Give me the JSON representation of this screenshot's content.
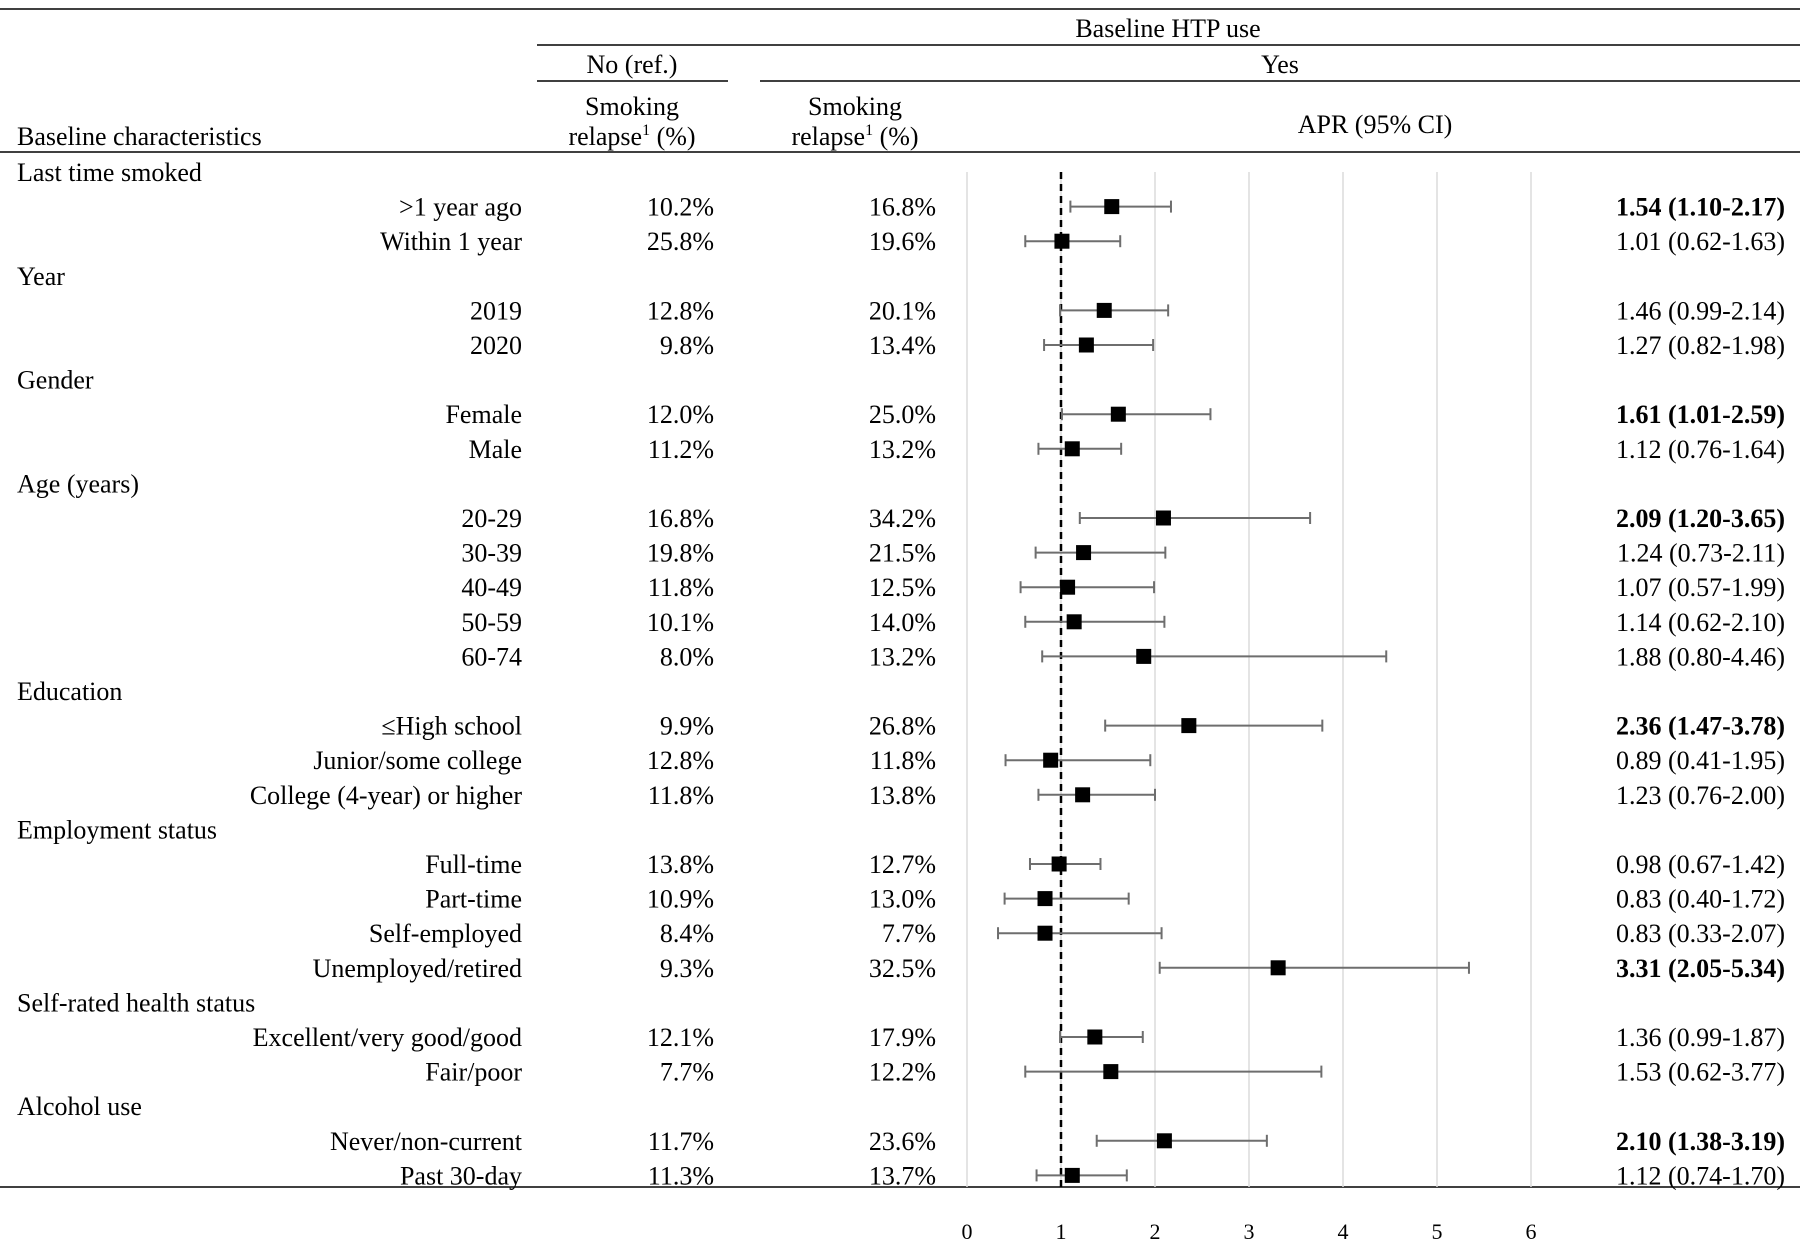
{
  "header": {
    "top_caption": "Baseline HTP use",
    "no_group": "No (ref.)",
    "yes_group": "Yes",
    "col_characteristics": "Baseline characteristics",
    "col_relapse_line1": "Smoking",
    "col_relapse_line2": "relapse",
    "col_relapse_sup": "1",
    "col_relapse_unit": " (%)",
    "col_apr": "APR (95% CI)"
  },
  "chart_data": {
    "type": "forest",
    "xlim": [
      0,
      6
    ],
    "xticks": [
      0,
      1,
      2,
      3,
      4,
      5,
      6
    ],
    "reference_line": 1,
    "grid": true,
    "rows": [
      {
        "kind": "group",
        "label": "Last time smoked"
      },
      {
        "kind": "item",
        "label": ">1 year ago",
        "no_relapse": "10.2%",
        "yes_relapse": "16.8%",
        "apr": 1.54,
        "lo": 1.1,
        "hi": 2.17,
        "text": "1.54 (1.10-2.17)",
        "bold": true
      },
      {
        "kind": "item",
        "label": "Within 1 year",
        "no_relapse": "25.8%",
        "yes_relapse": "19.6%",
        "apr": 1.01,
        "lo": 0.62,
        "hi": 1.63,
        "text": "1.01 (0.62-1.63)",
        "bold": false
      },
      {
        "kind": "group",
        "label": "Year"
      },
      {
        "kind": "item",
        "label": "2019",
        "no_relapse": "12.8%",
        "yes_relapse": "20.1%",
        "apr": 1.46,
        "lo": 0.99,
        "hi": 2.14,
        "text": "1.46 (0.99-2.14)",
        "bold": false
      },
      {
        "kind": "item",
        "label": "2020",
        "no_relapse": "9.8%",
        "yes_relapse": "13.4%",
        "apr": 1.27,
        "lo": 0.82,
        "hi": 1.98,
        "text": "1.27 (0.82-1.98)",
        "bold": false
      },
      {
        "kind": "group",
        "label": "Gender"
      },
      {
        "kind": "item",
        "label": "Female",
        "no_relapse": "12.0%",
        "yes_relapse": "25.0%",
        "apr": 1.61,
        "lo": 1.01,
        "hi": 2.59,
        "text": "1.61 (1.01-2.59)",
        "bold": true
      },
      {
        "kind": "item",
        "label": "Male",
        "no_relapse": "11.2%",
        "yes_relapse": "13.2%",
        "apr": 1.12,
        "lo": 0.76,
        "hi": 1.64,
        "text": "1.12 (0.76-1.64)",
        "bold": false
      },
      {
        "kind": "group",
        "label": "Age (years)"
      },
      {
        "kind": "item",
        "label": "20-29",
        "no_relapse": "16.8%",
        "yes_relapse": "34.2%",
        "apr": 2.09,
        "lo": 1.2,
        "hi": 3.65,
        "text": "2.09 (1.20-3.65)",
        "bold": true
      },
      {
        "kind": "item",
        "label": "30-39",
        "no_relapse": "19.8%",
        "yes_relapse": "21.5%",
        "apr": 1.24,
        "lo": 0.73,
        "hi": 2.11,
        "text": "1.24 (0.73-2.11)",
        "bold": false
      },
      {
        "kind": "item",
        "label": "40-49",
        "no_relapse": "11.8%",
        "yes_relapse": "12.5%",
        "apr": 1.07,
        "lo": 0.57,
        "hi": 1.99,
        "text": "1.07 (0.57-1.99)",
        "bold": false
      },
      {
        "kind": "item",
        "label": "50-59",
        "no_relapse": "10.1%",
        "yes_relapse": "14.0%",
        "apr": 1.14,
        "lo": 0.62,
        "hi": 2.1,
        "text": "1.14 (0.62-2.10)",
        "bold": false
      },
      {
        "kind": "item",
        "label": "60-74",
        "no_relapse": "8.0%",
        "yes_relapse": "13.2%",
        "apr": 1.88,
        "lo": 0.8,
        "hi": 4.46,
        "text": "1.88 (0.80-4.46)",
        "bold": false
      },
      {
        "kind": "group",
        "label": "Education"
      },
      {
        "kind": "item",
        "label": "≤High school",
        "no_relapse": "9.9%",
        "yes_relapse": "26.8%",
        "apr": 2.36,
        "lo": 1.47,
        "hi": 3.78,
        "text": "2.36 (1.47-3.78)",
        "bold": true
      },
      {
        "kind": "item",
        "label": "Junior/some college",
        "no_relapse": "12.8%",
        "yes_relapse": "11.8%",
        "apr": 0.89,
        "lo": 0.41,
        "hi": 1.95,
        "text": "0.89 (0.41-1.95)",
        "bold": false
      },
      {
        "kind": "item",
        "label": "College (4-year) or higher",
        "no_relapse": "11.8%",
        "yes_relapse": "13.8%",
        "apr": 1.23,
        "lo": 0.76,
        "hi": 2.0,
        "text": "1.23 (0.76-2.00)",
        "bold": false
      },
      {
        "kind": "group",
        "label": "Employment status"
      },
      {
        "kind": "item",
        "label": "Full-time",
        "no_relapse": "13.8%",
        "yes_relapse": "12.7%",
        "apr": 0.98,
        "lo": 0.67,
        "hi": 1.42,
        "text": "0.98 (0.67-1.42)",
        "bold": false
      },
      {
        "kind": "item",
        "label": "Part-time",
        "no_relapse": "10.9%",
        "yes_relapse": "13.0%",
        "apr": 0.83,
        "lo": 0.4,
        "hi": 1.72,
        "text": "0.83 (0.40-1.72)",
        "bold": false
      },
      {
        "kind": "item",
        "label": "Self-employed",
        "no_relapse": "8.4%",
        "yes_relapse": "7.7%",
        "apr": 0.83,
        "lo": 0.33,
        "hi": 2.07,
        "text": "0.83 (0.33-2.07)",
        "bold": false
      },
      {
        "kind": "item",
        "label": "Unemployed/retired",
        "no_relapse": "9.3%",
        "yes_relapse": "32.5%",
        "apr": 3.31,
        "lo": 2.05,
        "hi": 5.34,
        "text": "3.31 (2.05-5.34)",
        "bold": true
      },
      {
        "kind": "group",
        "label": "Self-rated health status"
      },
      {
        "kind": "item",
        "label": "Excellent/very good/good",
        "no_relapse": "12.1%",
        "yes_relapse": "17.9%",
        "apr": 1.36,
        "lo": 0.99,
        "hi": 1.87,
        "text": "1.36 (0.99-1.87)",
        "bold": false
      },
      {
        "kind": "item",
        "label": "Fair/poor",
        "no_relapse": "7.7%",
        "yes_relapse": "12.2%",
        "apr": 1.53,
        "lo": 0.62,
        "hi": 3.77,
        "text": "1.53 (0.62-3.77)",
        "bold": false
      },
      {
        "kind": "group",
        "label": "Alcohol use"
      },
      {
        "kind": "item",
        "label": "Never/non-current",
        "no_relapse": "11.7%",
        "yes_relapse": "23.6%",
        "apr": 2.1,
        "lo": 1.38,
        "hi": 3.19,
        "text": "2.10 (1.38-3.19)",
        "bold": true
      },
      {
        "kind": "item",
        "label": "Past 30-day",
        "no_relapse": "11.3%",
        "yes_relapse": "13.7%",
        "apr": 1.12,
        "lo": 0.74,
        "hi": 1.7,
        "text": "1.12 (0.74-1.70)",
        "bold": false
      }
    ]
  }
}
